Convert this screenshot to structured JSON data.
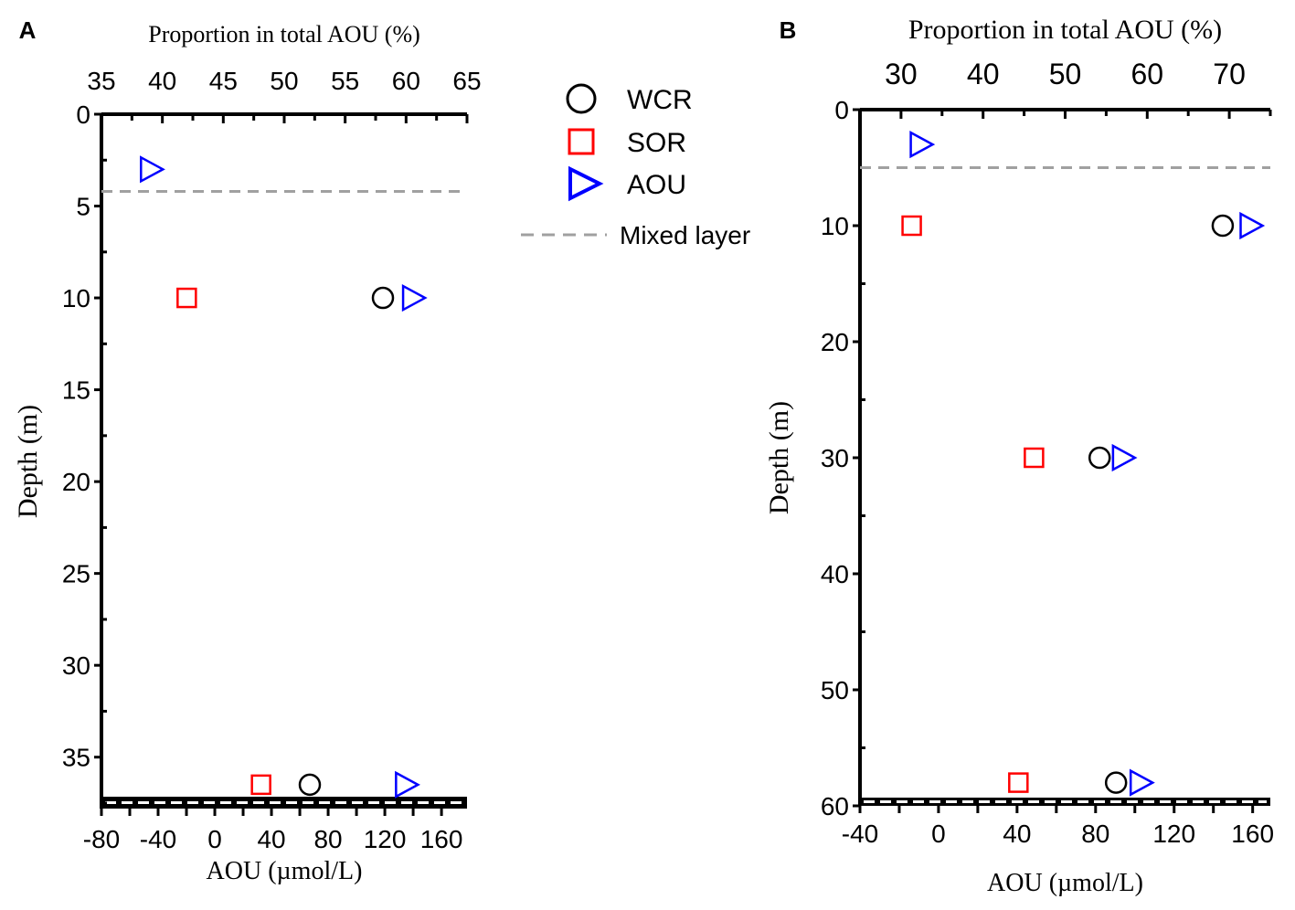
{
  "chart_data": [
    {
      "type": "scatter",
      "panel_label": "A",
      "top_axis_title": "Proportion in total AOU (%)",
      "bottom_axis_title": "AOU (µmol/L)",
      "ylabel": "Depth (m)",
      "top_xlim": [
        35,
        65
      ],
      "top_ticks": [
        "35",
        "40",
        "45",
        "50",
        "55",
        "60",
        "65"
      ],
      "bottom_xlim": [
        -80,
        178
      ],
      "bottom_ticks": [
        "-80",
        "-40",
        "0",
        "40",
        "80",
        "120",
        "160"
      ],
      "ylim": [
        0,
        37.8
      ],
      "y_ticks": [
        "0",
        "5",
        "10",
        "15",
        "20",
        "25",
        "30",
        "35"
      ],
      "mixed_layer_depth": 4.2,
      "series": [
        {
          "name": "WCR",
          "axis": "top",
          "points": [
            {
              "x": 58.1,
              "depth": 10
            },
            {
              "x": 52.1,
              "depth": 36.5
            }
          ]
        },
        {
          "name": "SOR",
          "axis": "top",
          "points": [
            {
              "x": 42.0,
              "depth": 10
            },
            {
              "x": 48.1,
              "depth": 36.5
            }
          ]
        },
        {
          "name": "AOU",
          "axis": "bottom",
          "points": [
            {
              "x": -45,
              "depth": 3
            },
            {
              "x": 140,
              "depth": 10
            },
            {
              "x": 135,
              "depth": 36.5
            }
          ]
        }
      ]
    },
    {
      "type": "scatter",
      "panel_label": "B",
      "top_axis_title": "Proportion in total AOU (%)",
      "bottom_axis_title": "AOU (µmol/L)",
      "ylabel": "Depth (m)",
      "top_xlim": [
        25,
        75
      ],
      "top_ticks": [
        "30",
        "40",
        "50",
        "60",
        "70"
      ],
      "bottom_xlim": [
        -40,
        169
      ],
      "bottom_ticks": [
        "-40",
        "0",
        "40",
        "80",
        "120",
        "160"
      ],
      "ylim": [
        0,
        60
      ],
      "y_ticks": [
        "0",
        "10",
        "20",
        "30",
        "40",
        "50",
        "60"
      ],
      "mixed_layer_depth": 5,
      "series": [
        {
          "name": "WCR",
          "axis": "top",
          "points": [
            {
              "x": 69.2,
              "depth": 10
            },
            {
              "x": 54.2,
              "depth": 30
            },
            {
              "x": 56.2,
              "depth": 58
            }
          ]
        },
        {
          "name": "SOR",
          "axis": "top",
          "points": [
            {
              "x": 31.3,
              "depth": 10
            },
            {
              "x": 46.2,
              "depth": 30
            },
            {
              "x": 44.3,
              "depth": 58
            }
          ]
        },
        {
          "name": "AOU",
          "axis": "bottom",
          "points": [
            {
              "x": -9,
              "depth": 3
            },
            {
              "x": 159,
              "depth": 10
            },
            {
              "x": 94,
              "depth": 30
            },
            {
              "x": 103,
              "depth": 58
            }
          ]
        }
      ]
    }
  ],
  "legend": {
    "items": [
      {
        "label": "WCR",
        "marker": "circle",
        "color": "#000000"
      },
      {
        "label": "SOR",
        "marker": "square",
        "color": "#ff0000"
      },
      {
        "label": "AOU",
        "marker": "triangle-right",
        "color": "#0000ff"
      },
      {
        "label": "Mixed layer",
        "marker": "dashed-line",
        "color": "#a0a0a0"
      }
    ],
    "placement": "between-panels"
  }
}
